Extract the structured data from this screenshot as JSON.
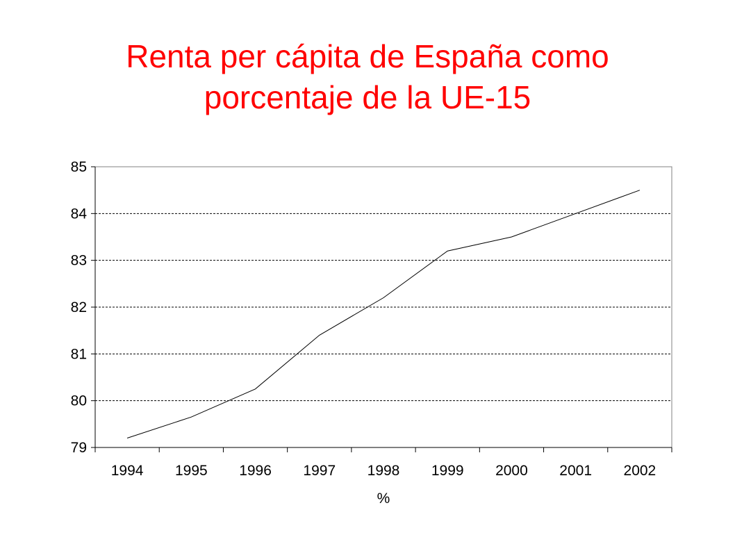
{
  "title_line1": "Renta per cápita de España como",
  "title_line2": "porcentaje de la UE-15",
  "colors": {
    "title": "#ff0000",
    "line": "#000000",
    "axis": "#000000",
    "grid": "#000000"
  },
  "chart_data": {
    "type": "line",
    "title": "Renta per cápita de España como porcentaje de la UE-15",
    "xlabel": "%",
    "ylabel": "",
    "categories": [
      "1994",
      "1995",
      "1996",
      "1997",
      "1998",
      "1999",
      "2000",
      "2001",
      "2002"
    ],
    "yticks": [
      "79",
      "80",
      "81",
      "82",
      "83",
      "84",
      "85"
    ],
    "ylim": [
      79,
      85
    ],
    "grid": "horizontal dashed",
    "legend": "none",
    "series": [
      {
        "values": [
          79.2,
          79.65,
          80.25,
          81.4,
          82.2,
          83.2,
          83.5,
          84.0,
          84.5
        ]
      }
    ]
  }
}
